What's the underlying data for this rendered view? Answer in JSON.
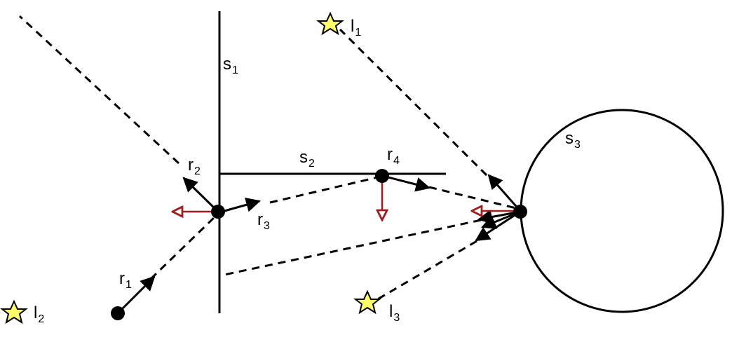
{
  "surfaces": [
    {
      "id": "s1",
      "label": "s",
      "sub": "1"
    },
    {
      "id": "s2",
      "label": "s",
      "sub": "2"
    },
    {
      "id": "s3",
      "label": "s",
      "sub": "3"
    }
  ],
  "rays": [
    {
      "id": "r1",
      "label": "r",
      "sub": "1"
    },
    {
      "id": "r2",
      "label": "r",
      "sub": "2"
    },
    {
      "id": "r3",
      "label": "r",
      "sub": "3"
    },
    {
      "id": "r4",
      "label": "r",
      "sub": "4"
    }
  ],
  "lights": [
    {
      "id": "l1",
      "label": "l",
      "sub": "1"
    },
    {
      "id": "l2",
      "label": "l",
      "sub": "2"
    },
    {
      "id": "l3",
      "label": "l",
      "sub": "3"
    }
  ],
  "colors": {
    "ink": "#000000",
    "normal": "#a11c1c",
    "star_fill": "#ffff66"
  }
}
